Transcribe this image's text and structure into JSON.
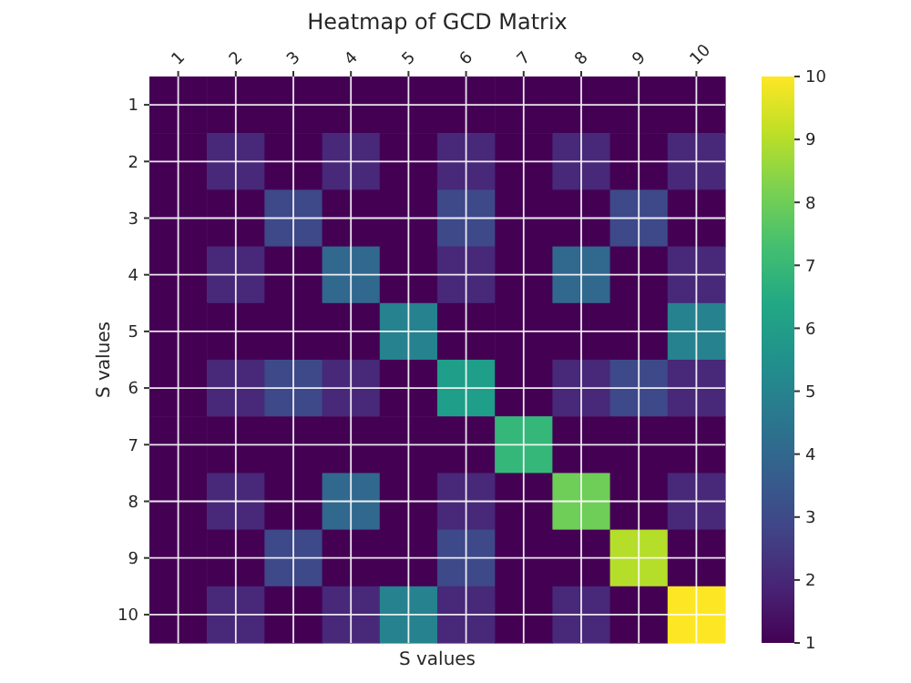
{
  "chart_data": {
    "type": "heatmap",
    "title": "Heatmap of GCD Matrix",
    "xlabel": "S values",
    "ylabel": "S values",
    "categories": [
      "1",
      "2",
      "3",
      "4",
      "5",
      "6",
      "7",
      "8",
      "9",
      "10"
    ],
    "y_categories": [
      "1",
      "2",
      "3",
      "4",
      "5",
      "6",
      "7",
      "8",
      "9",
      "10"
    ],
    "cells": [
      [
        1,
        1,
        1,
        1,
        1,
        1,
        1,
        1,
        1,
        1
      ],
      [
        1,
        2,
        1,
        2,
        1,
        2,
        1,
        2,
        1,
        2
      ],
      [
        1,
        1,
        3,
        1,
        1,
        3,
        1,
        1,
        3,
        1
      ],
      [
        1,
        2,
        1,
        4,
        1,
        2,
        1,
        4,
        1,
        2
      ],
      [
        1,
        1,
        1,
        1,
        5,
        1,
        1,
        1,
        1,
        5
      ],
      [
        1,
        2,
        3,
        2,
        1,
        6,
        1,
        2,
        3,
        2
      ],
      [
        1,
        1,
        1,
        1,
        1,
        1,
        7,
        1,
        1,
        1
      ],
      [
        1,
        2,
        1,
        4,
        1,
        2,
        1,
        8,
        1,
        2
      ],
      [
        1,
        1,
        3,
        1,
        1,
        3,
        1,
        1,
        9,
        1
      ],
      [
        1,
        2,
        1,
        2,
        5,
        2,
        1,
        2,
        1,
        10
      ]
    ],
    "clim": [
      1,
      10
    ],
    "cticks": [
      1,
      2,
      3,
      4,
      5,
      6,
      7,
      8,
      9,
      10
    ],
    "grid": true
  }
}
